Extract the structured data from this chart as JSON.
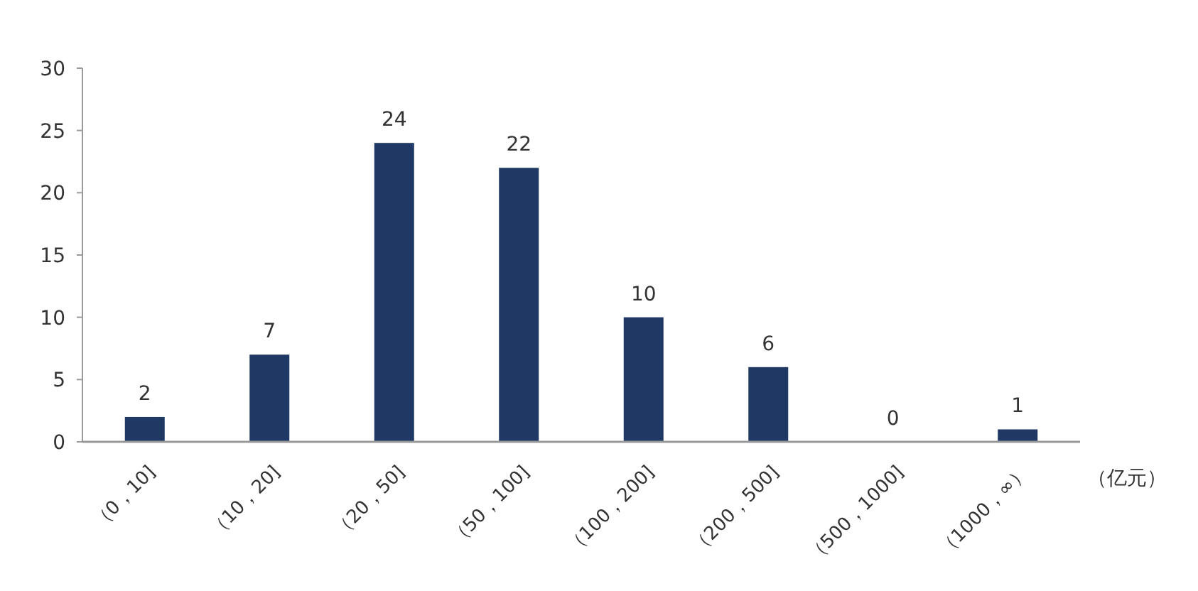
{
  "chart_data": {
    "type": "bar",
    "xlabel": "（亿元）",
    "categories": [
      "（0，10]",
      "（10，20]",
      "（20，50]",
      "（50，100]",
      "（100，200]",
      "（200，500]",
      "（500，1000]",
      "（1000，∞）"
    ],
    "values": [
      2,
      7,
      24,
      22,
      10,
      6,
      0,
      1
    ],
    "color": "#1f3864",
    "ylim": [
      0,
      30
    ],
    "yticks": [
      0,
      5,
      10,
      15,
      20,
      25,
      30
    ],
    "grid": false,
    "data_labels": true
  }
}
